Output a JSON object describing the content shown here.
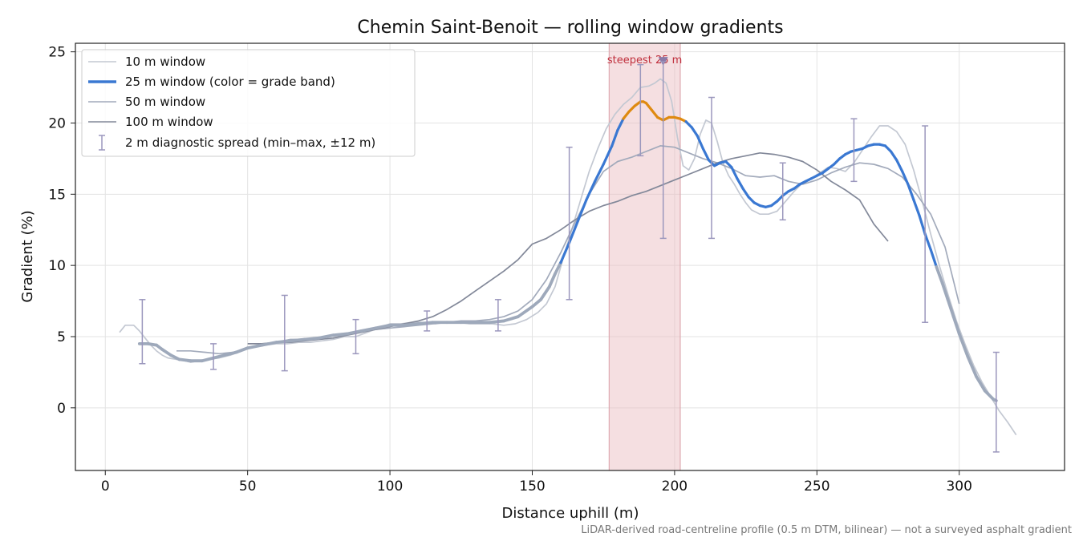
{
  "chart_data": {
    "type": "line",
    "title": "Chemin Saint-Benoit — rolling window gradients",
    "xlabel": "Distance uphill (m)",
    "ylabel": "Gradient (%)",
    "xlim": [
      -10.5,
      337
    ],
    "ylim": [
      -4.4,
      25.6
    ],
    "xticks": [
      0,
      50,
      100,
      150,
      200,
      250,
      300
    ],
    "yticks": [
      0,
      5,
      10,
      15,
      20,
      25
    ],
    "grid": true,
    "legend_position": "top-left",
    "footnote": "LiDAR-derived road-centreline profile (0.5 m DTM, bilinear) — not a surveyed asphalt gradient",
    "highlight_band": {
      "x_start": 177,
      "x_end": 202,
      "label": "steepest 25 m",
      "marker_x": 196,
      "marker_y": 24.3,
      "color": "#e8b7bd"
    },
    "colors": {
      "w10": "#c3c8d2",
      "w50": "#a2aabb",
      "w100": "#828899",
      "band_low": "#9ea9bb",
      "band_mid": "#3a78d2",
      "band_high": "#df8a10",
      "spread": "#9b97bd",
      "highlight_text": "#c0303d"
    },
    "series": [
      {
        "name": "10 m window",
        "x": [
          5,
          7,
          10,
          12,
          14,
          16,
          18,
          20,
          22,
          25,
          28,
          30,
          33,
          36,
          40,
          44,
          48,
          52,
          56,
          60,
          64,
          68,
          72,
          76,
          80,
          84,
          88,
          92,
          96,
          100,
          104,
          108,
          112,
          116,
          120,
          124,
          128,
          132,
          136,
          140,
          144,
          148,
          152,
          155,
          158,
          161,
          164,
          167,
          170,
          173,
          176,
          179,
          182,
          185,
          188,
          191,
          193,
          195,
          197,
          199,
          201,
          203,
          205,
          207,
          209,
          211,
          213,
          215,
          217,
          219,
          221,
          223,
          225,
          227,
          230,
          233,
          236,
          239,
          242,
          245,
          248,
          251,
          254,
          257,
          260,
          263,
          266,
          269,
          272,
          275,
          278,
          281,
          284,
          287,
          290,
          293,
          296,
          299,
          302,
          305,
          308,
          311,
          314,
          317,
          320
        ],
        "y": [
          5.3,
          5.8,
          5.8,
          5.4,
          4.9,
          4.4,
          4.0,
          3.7,
          3.5,
          3.4,
          3.3,
          3.2,
          3.3,
          3.4,
          3.5,
          3.7,
          4.0,
          4.3,
          4.4,
          4.5,
          4.5,
          4.6,
          4.6,
          4.7,
          4.8,
          5.0,
          5.0,
          5.3,
          5.6,
          5.9,
          5.9,
          6.0,
          6.0,
          5.9,
          6.0,
          6.0,
          5.9,
          5.9,
          5.9,
          5.8,
          5.9,
          6.2,
          6.7,
          7.3,
          8.5,
          10.6,
          12.6,
          14.6,
          16.6,
          18.2,
          19.6,
          20.6,
          21.3,
          21.8,
          22.5,
          22.6,
          22.8,
          23.1,
          22.8,
          21.5,
          19.0,
          17.0,
          16.7,
          17.5,
          19.2,
          20.2,
          20.0,
          18.7,
          17.2,
          16.3,
          15.7,
          15.0,
          14.4,
          13.9,
          13.6,
          13.6,
          13.8,
          14.5,
          15.2,
          15.8,
          16.1,
          16.5,
          16.9,
          16.8,
          16.6,
          17.2,
          18.1,
          19.0,
          19.8,
          19.8,
          19.4,
          18.5,
          16.7,
          14.5,
          12.2,
          10.0,
          8.0,
          6.1,
          4.5,
          3.0,
          1.8,
          0.8,
          -0.2,
          -1.0,
          -1.9
        ]
      },
      {
        "name": "25 m window (color = grade band)",
        "x": [
          12,
          15,
          18,
          20,
          23,
          26,
          30,
          34,
          38,
          42,
          46,
          50,
          55,
          60,
          65,
          70,
          75,
          80,
          85,
          90,
          95,
          100,
          105,
          110,
          115,
          120,
          125,
          130,
          135,
          140,
          145,
          150,
          153,
          156,
          158,
          160,
          163,
          166,
          169,
          172,
          175,
          178,
          180,
          182,
          184,
          186,
          188,
          189,
          190,
          192,
          194,
          196,
          198,
          200,
          202,
          204,
          206,
          208,
          210,
          212,
          214,
          216,
          218,
          220,
          222,
          224,
          226,
          228,
          230,
          232,
          234,
          236,
          238,
          240,
          242,
          244,
          246,
          248,
          250,
          252,
          254,
          256,
          258,
          260,
          262,
          264,
          266,
          268,
          270,
          272,
          274,
          276,
          278,
          280,
          282,
          284,
          286,
          288,
          290,
          292,
          294,
          296,
          298,
          300,
          303,
          306,
          309,
          312,
          313
        ],
        "y": [
          4.5,
          4.5,
          4.4,
          4.1,
          3.7,
          3.4,
          3.3,
          3.3,
          3.5,
          3.7,
          3.9,
          4.2,
          4.4,
          4.6,
          4.7,
          4.8,
          4.9,
          5.1,
          5.2,
          5.4,
          5.6,
          5.8,
          5.8,
          5.9,
          6.0,
          6.0,
          6.0,
          6.0,
          6.0,
          6.1,
          6.4,
          7.1,
          7.6,
          8.5,
          9.4,
          10.2,
          11.6,
          13.1,
          14.6,
          15.9,
          17.1,
          18.4,
          19.5,
          20.3,
          20.8,
          21.2,
          21.5,
          21.5,
          21.4,
          20.9,
          20.4,
          20.2,
          20.4,
          20.4,
          20.3,
          20.1,
          19.7,
          19.1,
          18.2,
          17.4,
          17.0,
          17.2,
          17.3,
          16.9,
          16.1,
          15.4,
          14.8,
          14.4,
          14.2,
          14.1,
          14.2,
          14.5,
          14.9,
          15.2,
          15.4,
          15.7,
          15.9,
          16.1,
          16.3,
          16.5,
          16.8,
          17.1,
          17.5,
          17.8,
          18.0,
          18.1,
          18.2,
          18.4,
          18.5,
          18.5,
          18.4,
          18.0,
          17.4,
          16.6,
          15.7,
          14.6,
          13.5,
          12.2,
          11.1,
          9.9,
          8.8,
          7.6,
          6.4,
          5.2,
          3.6,
          2.2,
          1.2,
          0.6,
          0.5
        ]
      },
      {
        "name": "50 m window",
        "x": [
          25,
          30,
          35,
          40,
          45,
          50,
          55,
          60,
          65,
          70,
          75,
          80,
          85,
          90,
          95,
          100,
          105,
          110,
          115,
          120,
          125,
          130,
          135,
          140,
          145,
          150,
          155,
          160,
          165,
          170,
          175,
          180,
          185,
          190,
          195,
          200,
          205,
          210,
          215,
          220,
          225,
          230,
          235,
          240,
          245,
          250,
          255,
          260,
          265,
          270,
          275,
          280,
          285,
          290,
          295,
          300
        ],
        "y": [
          4.0,
          4.0,
          3.9,
          3.8,
          3.9,
          4.2,
          4.4,
          4.6,
          4.8,
          4.8,
          4.9,
          5.1,
          5.2,
          5.4,
          5.5,
          5.6,
          5.7,
          5.8,
          5.9,
          6.0,
          6.1,
          6.1,
          6.2,
          6.4,
          6.8,
          7.6,
          9.0,
          10.9,
          13.0,
          15.0,
          16.6,
          17.3,
          17.6,
          18.0,
          18.4,
          18.3,
          17.9,
          17.5,
          17.2,
          16.8,
          16.3,
          16.2,
          16.3,
          15.9,
          15.7,
          16.0,
          16.5,
          16.9,
          17.2,
          17.1,
          16.8,
          16.2,
          15.0,
          13.6,
          11.3,
          7.3
        ]
      },
      {
        "name": "100 m window",
        "x": [
          50,
          55,
          60,
          65,
          70,
          75,
          80,
          85,
          90,
          95,
          100,
          105,
          110,
          115,
          120,
          125,
          130,
          135,
          140,
          145,
          150,
          155,
          160,
          165,
          170,
          175,
          180,
          185,
          190,
          195,
          200,
          205,
          210,
          215,
          220,
          225,
          230,
          235,
          240,
          245,
          250,
          255,
          260,
          265,
          270,
          275
        ],
        "y": [
          4.5,
          4.5,
          4.6,
          4.6,
          4.7,
          4.8,
          4.9,
          5.1,
          5.3,
          5.5,
          5.7,
          5.9,
          6.1,
          6.4,
          6.9,
          7.5,
          8.2,
          8.9,
          9.6,
          10.4,
          11.5,
          11.9,
          12.5,
          13.2,
          13.8,
          14.2,
          14.5,
          14.9,
          15.2,
          15.6,
          16.0,
          16.4,
          16.8,
          17.2,
          17.5,
          17.7,
          17.9,
          17.8,
          17.6,
          17.3,
          16.7,
          15.9,
          15.3,
          14.6,
          12.9,
          11.7
        ]
      }
    ],
    "diagnostic_spread": {
      "name": "2 m diagnostic spread (min–max, ±12 m)",
      "points": [
        {
          "x": 13,
          "min": 3.1,
          "max": 7.6
        },
        {
          "x": 38,
          "min": 2.7,
          "max": 4.5
        },
        {
          "x": 63,
          "min": 2.6,
          "max": 7.9
        },
        {
          "x": 88,
          "min": 3.8,
          "max": 6.2
        },
        {
          "x": 113,
          "min": 5.4,
          "max": 6.8
        },
        {
          "x": 138,
          "min": 5.4,
          "max": 7.6
        },
        {
          "x": 163,
          "min": 7.6,
          "max": 18.3
        },
        {
          "x": 188,
          "min": 17.7,
          "max": 24.1
        },
        {
          "x": 196,
          "min": 11.9,
          "max": 24.3
        },
        {
          "x": 213,
          "min": 11.9,
          "max": 21.8
        },
        {
          "x": 238,
          "min": 13.2,
          "max": 17.2
        },
        {
          "x": 263,
          "min": 15.9,
          "max": 20.3
        },
        {
          "x": 288,
          "min": 6.0,
          "max": 19.8
        },
        {
          "x": 313,
          "min": -3.1,
          "max": 3.9
        }
      ]
    }
  }
}
